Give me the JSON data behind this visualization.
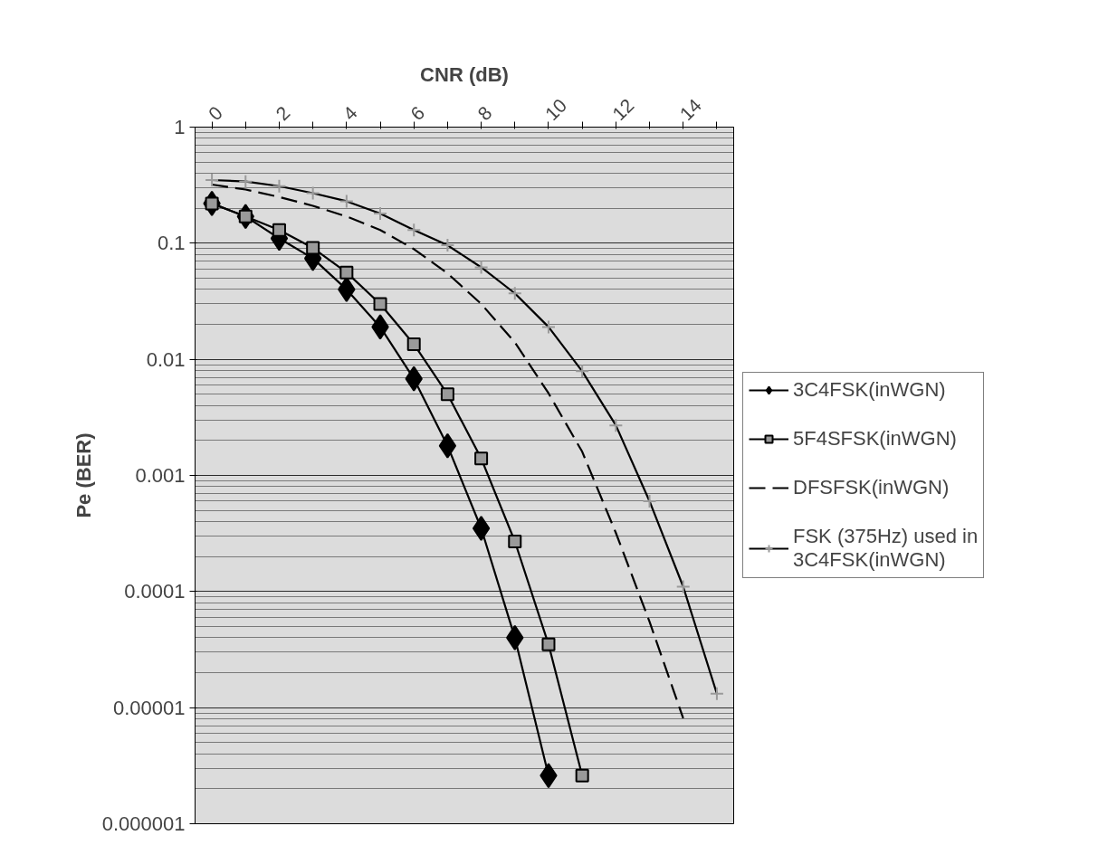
{
  "chart_data": {
    "type": "line",
    "xlabel": "CNR (dB)",
    "ylabel": "Pe (BER)",
    "categories": [
      "0",
      null,
      "2",
      null,
      "4",
      null,
      "6",
      null,
      "8",
      null,
      "10",
      null,
      "12",
      null,
      "14",
      null
    ],
    "log": "y",
    "ylim": [
      1e-06,
      1
    ],
    "yticks": [
      1,
      0.1,
      0.01,
      0.001,
      0.0001,
      {
        "value": 1e-05,
        "label": "0.00001"
      },
      {
        "value": 1e-06,
        "label": "0.000001"
      }
    ],
    "grid": "y",
    "legend": "right",
    "series": [
      {
        "name": "3C4FSK(inWGN)",
        "color": "#000000",
        "marker": "diamond",
        "line_style": "solid",
        "values": [
          0.22,
          0.17,
          0.11,
          0.074,
          0.04,
          0.019,
          0.0068,
          0.0018,
          0.00035,
          4e-05,
          2.6e-06,
          null,
          null,
          null,
          null,
          null
        ]
      },
      {
        "name": "5F4SFSK(inWGN)",
        "color": "#000000",
        "marker": "square",
        "line_style": "solid",
        "values": [
          0.22,
          0.17,
          0.13,
          0.091,
          0.056,
          0.03,
          0.0135,
          0.005,
          0.0014,
          0.00027,
          3.5e-05,
          2.6e-06,
          null,
          null,
          null,
          null
        ]
      },
      {
        "name": "DFSFSK(inWGN)",
        "color": "#000000",
        "marker": "none",
        "line_style": "dashed",
        "values": [
          0.32,
          0.29,
          0.25,
          0.21,
          0.17,
          0.13,
          0.089,
          0.055,
          0.03,
          0.014,
          0.0051,
          0.0016,
          0.00032,
          5.5e-05,
          8.1e-06,
          null
        ]
      },
      {
        "name": "FSK (375Hz) used in 3C4FSK(inWGN)",
        "color": "#000000",
        "marker": "cross",
        "line_style": "solid",
        "values": [
          0.35,
          0.34,
          0.31,
          0.27,
          0.23,
          0.18,
          0.13,
          0.096,
          0.062,
          0.037,
          0.019,
          0.0079,
          0.0027,
          0.0006,
          0.00011,
          1.32e-05
        ]
      }
    ]
  }
}
